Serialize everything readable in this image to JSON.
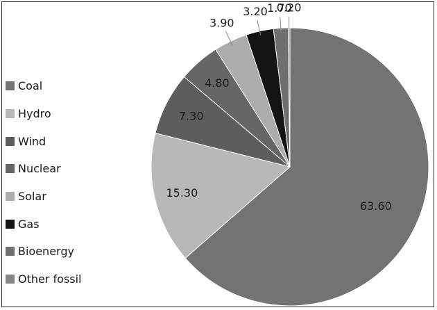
{
  "chart_data": {
    "type": "pie",
    "title": "",
    "categories": [
      "Coal",
      "Hydro",
      "Wind",
      "Nuclear",
      "Solar",
      "Gas",
      "Bioenergy",
      "Other fossil"
    ],
    "values": [
      63.6,
      15.3,
      7.3,
      4.8,
      3.9,
      3.2,
      1.7,
      0.2
    ],
    "value_labels": [
      "63.60",
      "15.30",
      "7.30",
      "4.80",
      "3.90",
      "3.20",
      "1.70",
      "0.20"
    ],
    "colors": [
      "#737373",
      "#b8b8b8",
      "#5d5d5d",
      "#666666",
      "#acacac",
      "#141414",
      "#6f6f6f",
      "#858585"
    ],
    "legend_position": "left",
    "start_angle_deg": 0,
    "direction": "clockwise"
  }
}
